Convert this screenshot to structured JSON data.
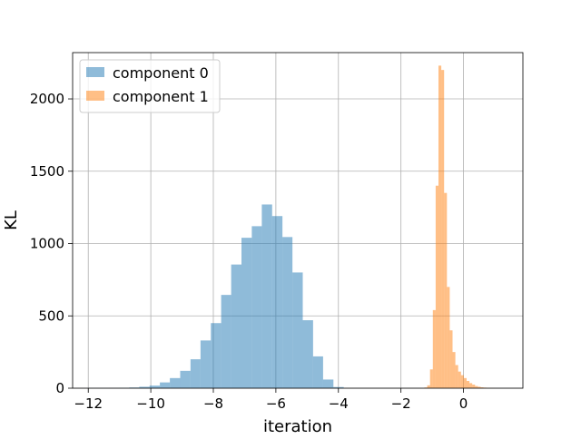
{
  "chart_data": {
    "type": "histogram",
    "xlabel": "iteration",
    "ylabel": "KL",
    "xlim": [
      -12.5,
      1.9
    ],
    "ylim": [
      0,
      2320
    ],
    "xticks": [
      -12,
      -10,
      -8,
      -6,
      -4,
      -2,
      0
    ],
    "xtick_labels": [
      "−12",
      "−10",
      "−8",
      "−6",
      "−4",
      "−2",
      "0"
    ],
    "yticks": [
      0,
      500,
      1000,
      1500,
      2000
    ],
    "ytick_labels": [
      "0",
      "500",
      "1000",
      "1500",
      "2000"
    ],
    "grid": true,
    "legend_position": "upper-left",
    "series": [
      {
        "name": "component 0",
        "color": "#1f77b4",
        "opacity": 0.5,
        "bin_edges": [
          -12.0,
          -11.67,
          -11.35,
          -11.02,
          -10.69,
          -10.37,
          -10.04,
          -9.71,
          -9.39,
          -9.06,
          -8.73,
          -8.41,
          -8.08,
          -7.75,
          -7.43,
          -7.1,
          -6.77,
          -6.45,
          -6.12,
          -5.79,
          -5.47,
          -5.14,
          -4.81,
          -4.49,
          -4.16,
          -3.83
        ],
        "counts": [
          1,
          1,
          2,
          3,
          5,
          10,
          18,
          40,
          70,
          120,
          200,
          330,
          450,
          645,
          855,
          1040,
          1120,
          1270,
          1190,
          1045,
          800,
          470,
          220,
          60,
          8
        ]
      },
      {
        "name": "component 1",
        "color": "#ff7f0e",
        "opacity": 0.5,
        "bin_edges": [
          -1.25,
          -1.16,
          -1.07,
          -0.98,
          -0.89,
          -0.8,
          -0.71,
          -0.62,
          -0.53,
          -0.44,
          -0.35,
          -0.26,
          -0.17,
          -0.08,
          0.01,
          0.1,
          0.19,
          0.28,
          0.37,
          0.46,
          0.55,
          0.64,
          0.73,
          0.82,
          0.91,
          1.0
        ],
        "counts": [
          5,
          20,
          130,
          540,
          1400,
          2230,
          2200,
          1350,
          700,
          400,
          250,
          160,
          115,
          90,
          70,
          50,
          35,
          25,
          15,
          10,
          6,
          4,
          2,
          1,
          1
        ]
      }
    ]
  }
}
